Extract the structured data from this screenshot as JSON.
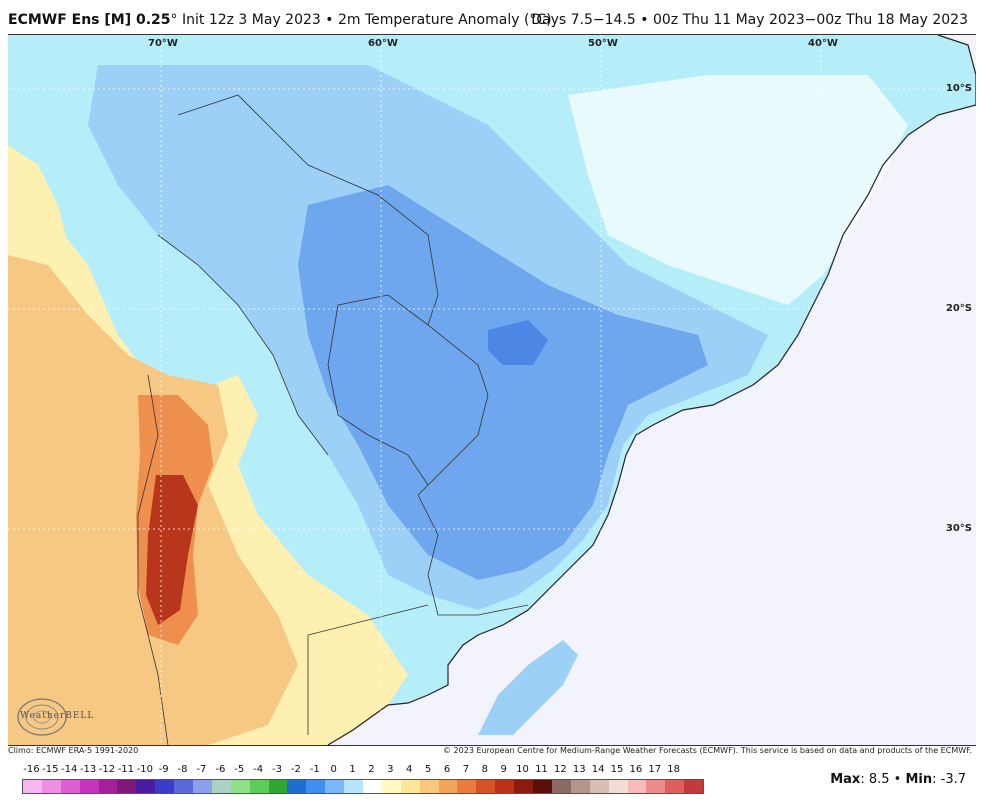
{
  "header": {
    "model": "ECMWF Ens [M] 0.25",
    "degree": "°",
    "init_and_var": " Init 12z 3 May 2023 • 2m Temperature Anomaly (°C)",
    "valid": "Days 7.5−14.5 • 00z Thu 11 May 2023−00z Thu 18 May 2023"
  },
  "map": {
    "lon_labels": [
      "70°W",
      "60°W",
      "50°W",
      "40°W"
    ],
    "lat_labels": [
      "10°S",
      "20°S",
      "30°S"
    ],
    "colors": {
      "ocean": "#f3f4fb",
      "cool_light": "#b5eef9",
      "cool_mid": "#9dd0f7",
      "cool_deep": "#6fa7ef",
      "cool_core": "#4c87e6",
      "warm_light": "#fdf0b0",
      "warm_mid": "#f7c884",
      "warm_deep": "#ee8f4e",
      "warm_core": "#b8361c"
    }
  },
  "logo": {
    "name": "WeatherBELL"
  },
  "footer": {
    "climo": "Climo: ECMWF ERA-5 1991-2020",
    "copyright": "© 2023 European Centre for Medium-Range Weather Forecasts (ECMWF). This service is based on data and products of the ECMWF."
  },
  "colorbar": {
    "labels": [
      "-16",
      "-15",
      "-14",
      "-13",
      "-12",
      "-11",
      "-10",
      "-9",
      "-8",
      "-7",
      "-6",
      "-5",
      "-4",
      "-3",
      "-2",
      "-1",
      "0",
      "1",
      "2",
      "3",
      "4",
      "5",
      "6",
      "7",
      "8",
      "9",
      "10",
      "11",
      "12",
      "13",
      "14",
      "15",
      "16",
      "17",
      "18"
    ],
    "colors": [
      "#f7b6f1",
      "#ee8fe6",
      "#df5ed4",
      "#c634bd",
      "#a51e9a",
      "#82177a",
      "#4a1aa0",
      "#3a3cc7",
      "#5a6ad9",
      "#8c9fe8",
      "#a9d2c2",
      "#8fe089",
      "#5dcc58",
      "#2fa832",
      "#1e6ecf",
      "#3f8ef0",
      "#79b7f6",
      "#b6e5fb",
      "#ffffff",
      "#fff8c2",
      "#fde59a",
      "#f9c77e",
      "#f4a55c",
      "#ea7b3e",
      "#d85228",
      "#bb3019",
      "#8d1a0e",
      "#5c0f07",
      "#8a6a62",
      "#b5948a",
      "#d8bdb3",
      "#f2dcd6",
      "#f7b9b9",
      "#ec8c8c",
      "#db5f5f",
      "#c33a3a"
    ]
  },
  "stats": {
    "max_label": "Max",
    "max_value": ": 8.5",
    "sep": " • ",
    "min_label": "Min",
    "min_value": ": -3.7"
  }
}
